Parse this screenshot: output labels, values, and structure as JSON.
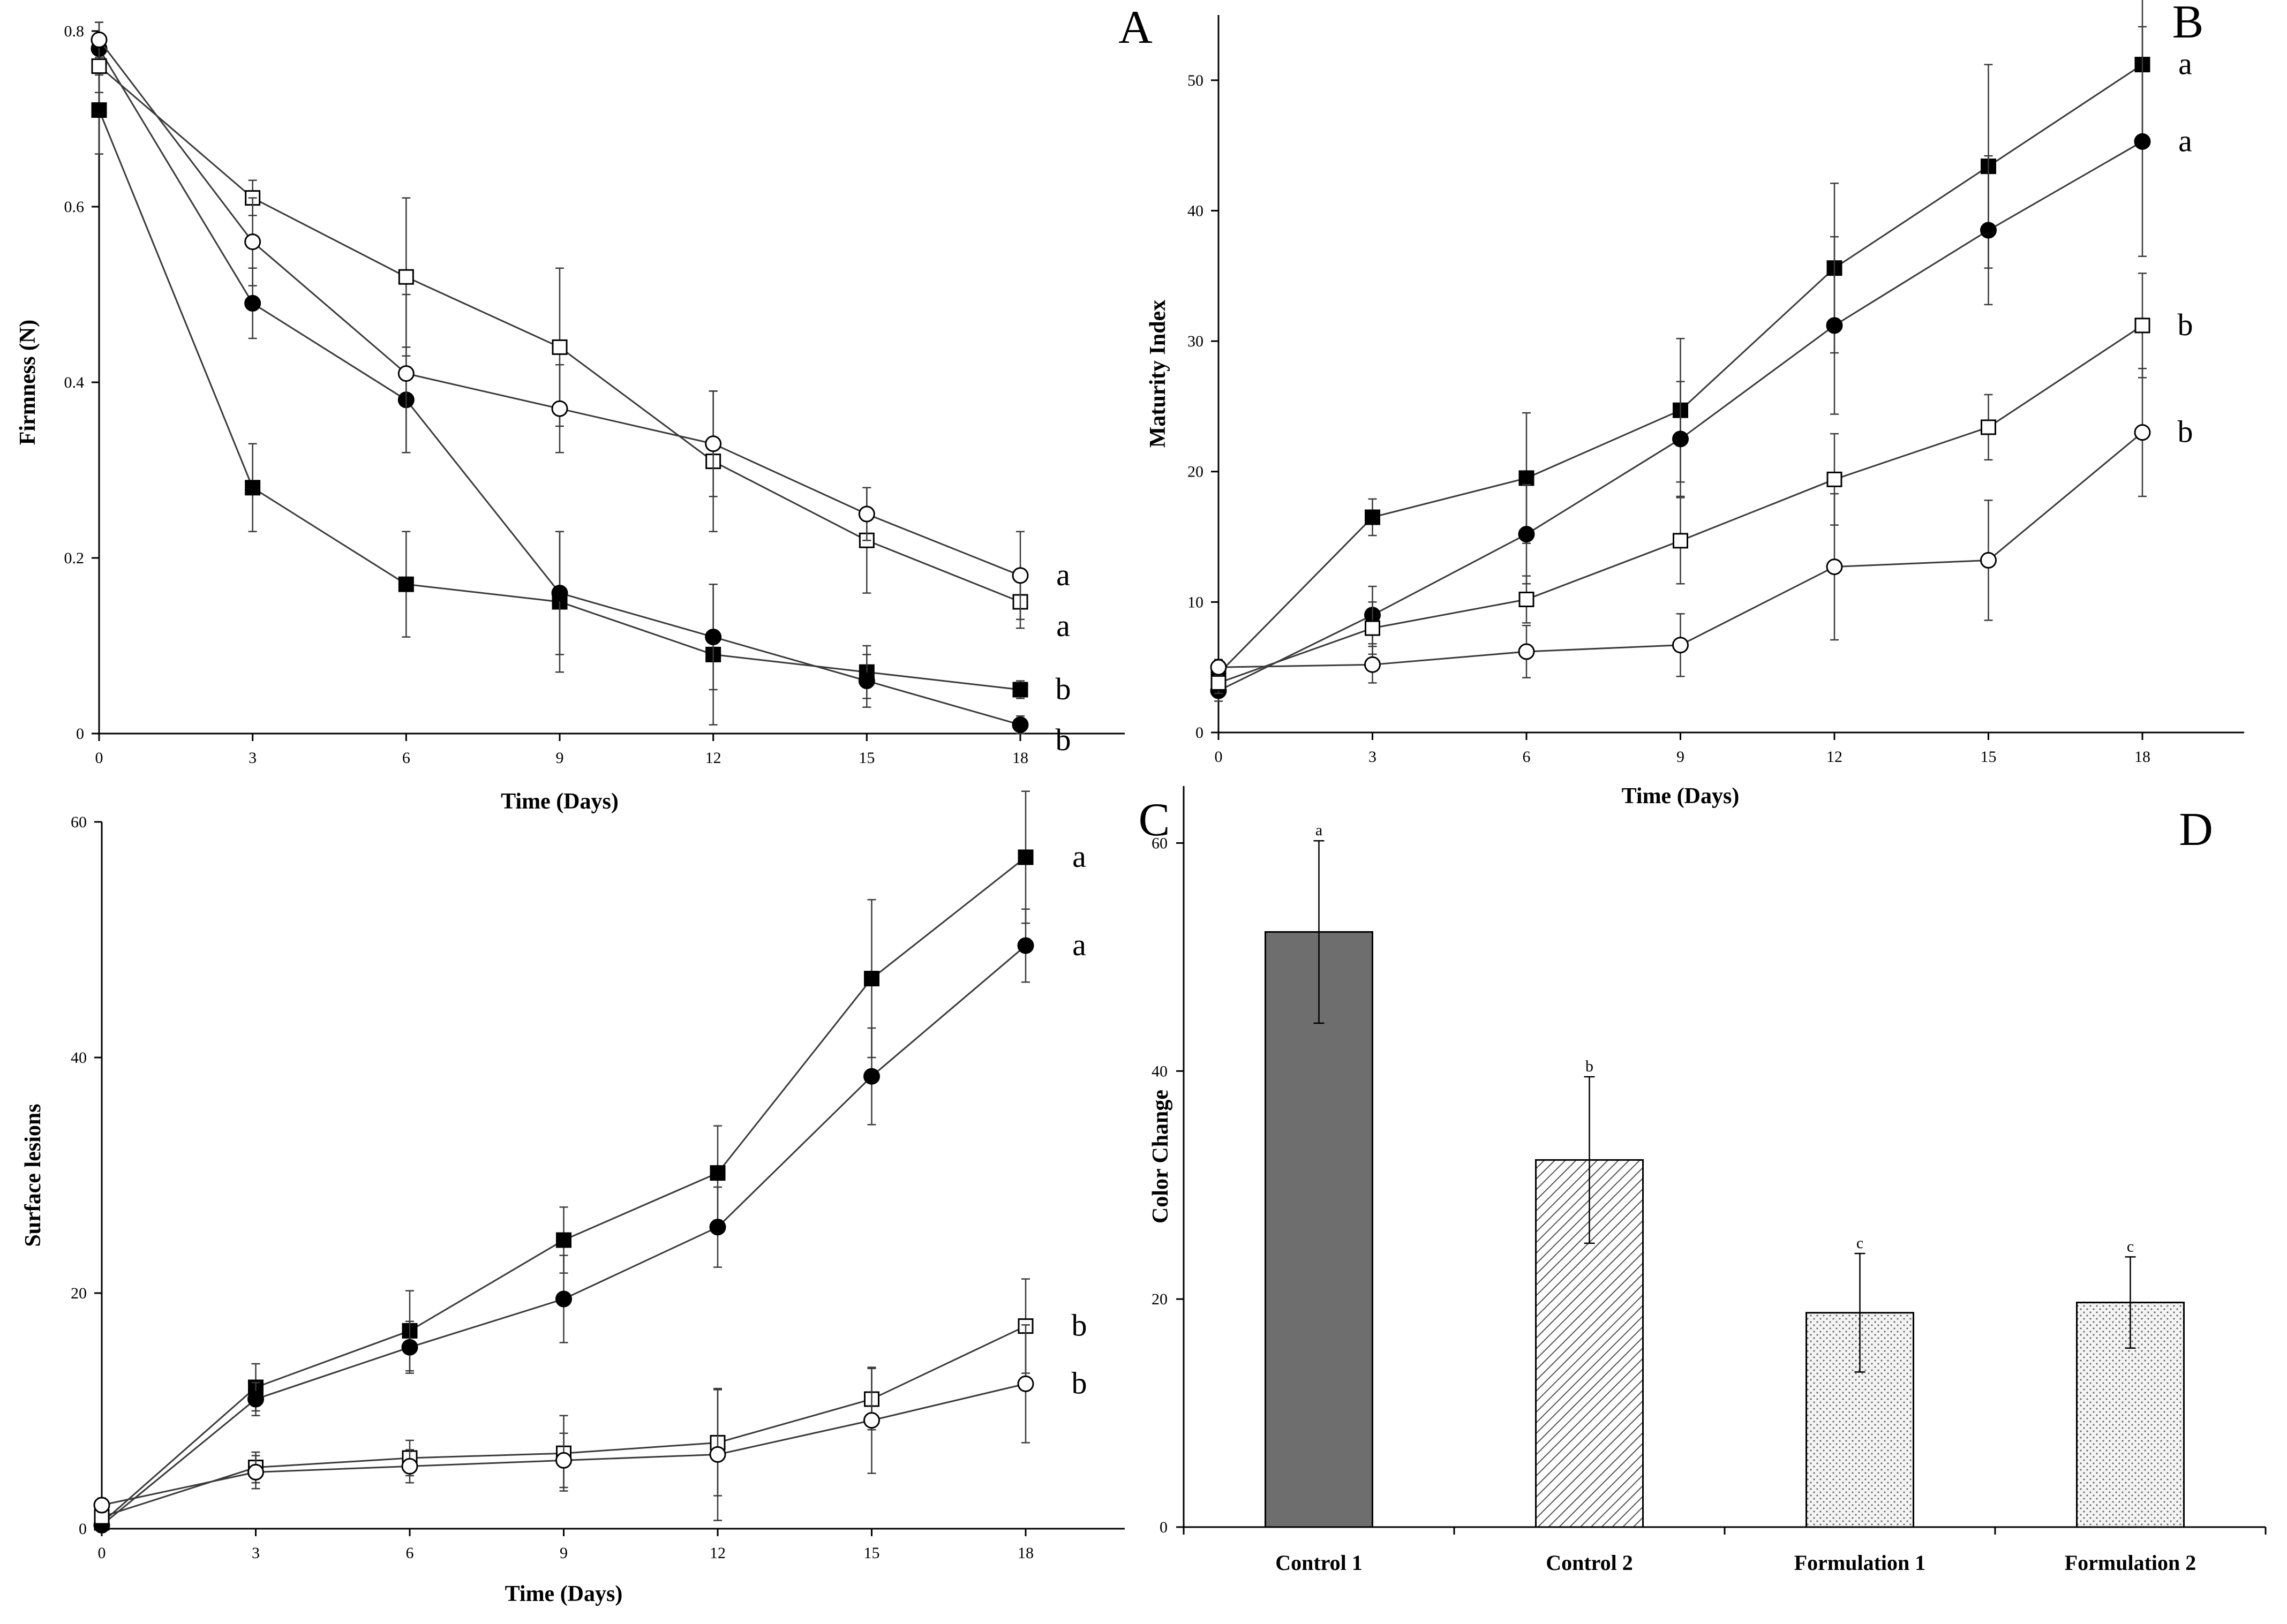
{
  "colors": {
    "ink": "#000000",
    "line": "#3a3a3a",
    "bar_control1": "#6e6e6e",
    "hatch": "#555555",
    "dots": "#6a6a6a",
    "dots_bg": "#f4f4f4"
  },
  "chart_data": [
    {
      "id": "A",
      "panel_label": "A",
      "type": "line",
      "xlabel": "Time (Days)",
      "ylabel": "Firmness (N)",
      "xlim": [
        0,
        18
      ],
      "ylim": [
        0,
        0.8
      ],
      "x_ticks": [
        0,
        3,
        6,
        9,
        12,
        15,
        18
      ],
      "y_ticks": [
        0,
        0.2,
        0.4,
        0.6,
        0.8
      ],
      "x_tick_labels": [
        "0",
        "3",
        "6",
        "9",
        "12",
        "15",
        "18"
      ],
      "y_tick_labels": [
        "0",
        "0.2",
        "0.4",
        "0.6",
        "0.8"
      ],
      "x": [
        0,
        3,
        6,
        9,
        12,
        15,
        18
      ],
      "series": [
        {
          "marker": "square-filled",
          "values": [
            0.71,
            0.28,
            0.17,
            0.15,
            0.09,
            0.07,
            0.05
          ],
          "errors": [
            0.05,
            0.05,
            0.06,
            0.08,
            0.08,
            0.03,
            0.01
          ],
          "letter": "b"
        },
        {
          "marker": "circle-filled",
          "values": [
            0.78,
            0.49,
            0.38,
            0.16,
            0.11,
            0.06,
            0.01
          ],
          "errors": [
            0.03,
            0.04,
            0.06,
            0.07,
            0.06,
            0.03,
            0.01
          ],
          "letter": "b"
        },
        {
          "marker": "square-open",
          "values": [
            0.76,
            0.61,
            0.52,
            0.44,
            0.31,
            0.22,
            0.15
          ],
          "errors": [
            0.03,
            0.02,
            0.09,
            0.09,
            0.08,
            0.06,
            0.03
          ],
          "letter": "a"
        },
        {
          "marker": "circle-open",
          "values": [
            0.79,
            0.56,
            0.41,
            0.37,
            0.33,
            0.25,
            0.18
          ],
          "errors": [
            0.02,
            0.05,
            0.09,
            0.05,
            0.06,
            0.03,
            0.05
          ],
          "letter": "a"
        }
      ]
    },
    {
      "id": "B",
      "panel_label": "B",
      "type": "line",
      "xlabel": "Time (Days)",
      "ylabel": "Maturity Index",
      "xlim": [
        0,
        18
      ],
      "ylim": [
        0,
        55
      ],
      "x_ticks": [
        0,
        3,
        6,
        9,
        12,
        15,
        18
      ],
      "y_ticks": [
        0,
        10,
        20,
        30,
        40,
        50
      ],
      "x_tick_labels": [
        "0",
        "3",
        "6",
        "9",
        "12",
        "15",
        "18"
      ],
      "y_tick_labels": [
        "0",
        "10",
        "20",
        "30",
        "40",
        "50"
      ],
      "x": [
        0,
        3,
        6,
        9,
        12,
        15,
        18
      ],
      "series": [
        {
          "marker": "square-filled",
          "values": [
            4.5,
            16.5,
            19.5,
            24.7,
            35.6,
            43.4,
            51.2
          ],
          "errors": [
            1.0,
            1.4,
            5.0,
            5.5,
            6.5,
            7.8,
            5.8
          ],
          "letter": "a"
        },
        {
          "marker": "circle-filled",
          "values": [
            3.2,
            9.0,
            15.2,
            22.5,
            31.2,
            38.5,
            45.3
          ],
          "errors": [
            0.8,
            2.2,
            3.8,
            4.4,
            6.8,
            5.7,
            8.8
          ],
          "letter": "a"
        },
        {
          "marker": "square-open",
          "values": [
            3.8,
            8.0,
            10.2,
            14.7,
            19.4,
            23.4,
            31.2
          ],
          "errors": [
            0.8,
            2.0,
            1.8,
            3.3,
            3.5,
            2.5,
            4.0
          ],
          "letter": "b"
        },
        {
          "marker": "circle-open",
          "values": [
            5.0,
            5.2,
            6.2,
            6.7,
            12.7,
            13.2,
            23.0
          ],
          "errors": [
            0.6,
            1.4,
            2.0,
            2.4,
            5.6,
            4.6,
            4.9
          ],
          "letter": "b"
        }
      ]
    },
    {
      "id": "C",
      "panel_label": "C",
      "type": "line",
      "xlabel": "Time (Days)",
      "ylabel": "Surface lesions",
      "xlim": [
        0,
        18
      ],
      "ylim": [
        0,
        60
      ],
      "x_ticks": [
        0,
        3,
        6,
        9,
        12,
        15,
        18
      ],
      "y_ticks": [
        0,
        20,
        40,
        60
      ],
      "x_tick_labels": [
        "0",
        "3",
        "6",
        "9",
        "12",
        "15",
        "18"
      ],
      "y_tick_labels": [
        "0",
        "20",
        "40",
        "60"
      ],
      "x": [
        0,
        3,
        6,
        9,
        12,
        15,
        18
      ],
      "series": [
        {
          "marker": "square-filled",
          "values": [
            0.5,
            12.0,
            16.8,
            24.5,
            30.2,
            46.7,
            57.0
          ],
          "errors": [
            0.4,
            2.0,
            3.4,
            2.8,
            4.0,
            6.7,
            5.6
          ],
          "letter": "a"
        },
        {
          "marker": "circle-filled",
          "values": [
            0.3,
            11.0,
            15.4,
            19.5,
            25.6,
            38.4,
            49.5
          ],
          "errors": [
            0.3,
            1.4,
            2.2,
            3.7,
            3.4,
            4.1,
            3.1
          ],
          "letter": "a"
        },
        {
          "marker": "square-open",
          "values": [
            1.0,
            5.2,
            6.0,
            6.4,
            7.3,
            11.0,
            17.2
          ],
          "errors": [
            0.5,
            1.3,
            1.5,
            3.2,
            4.5,
            2.6,
            4.0
          ],
          "letter": "b"
        },
        {
          "marker": "circle-open",
          "values": [
            2.0,
            4.8,
            5.3,
            5.8,
            6.3,
            9.2,
            12.3
          ],
          "errors": [
            0.6,
            1.4,
            1.4,
            2.3,
            5.6,
            4.5,
            5.0
          ],
          "letter": "b"
        }
      ]
    },
    {
      "id": "D",
      "panel_label": "D",
      "type": "bar",
      "xlabel": "",
      "ylabel": "Color Change",
      "ylim": [
        0,
        65
      ],
      "y_ticks": [
        0,
        20,
        40,
        60
      ],
      "y_tick_labels": [
        "0",
        "20",
        "40",
        "60"
      ],
      "categories": [
        "Control 1",
        "Control 2",
        "Formulation 1",
        "Formulation 2"
      ],
      "values": [
        52.2,
        32.2,
        18.8,
        19.7
      ],
      "errors": [
        8.0,
        7.3,
        5.2,
        4.0
      ],
      "fills": [
        "solid",
        "hatch",
        "dots",
        "dots"
      ],
      "letters": [
        "a",
        "b",
        "c",
        "c"
      ]
    }
  ]
}
